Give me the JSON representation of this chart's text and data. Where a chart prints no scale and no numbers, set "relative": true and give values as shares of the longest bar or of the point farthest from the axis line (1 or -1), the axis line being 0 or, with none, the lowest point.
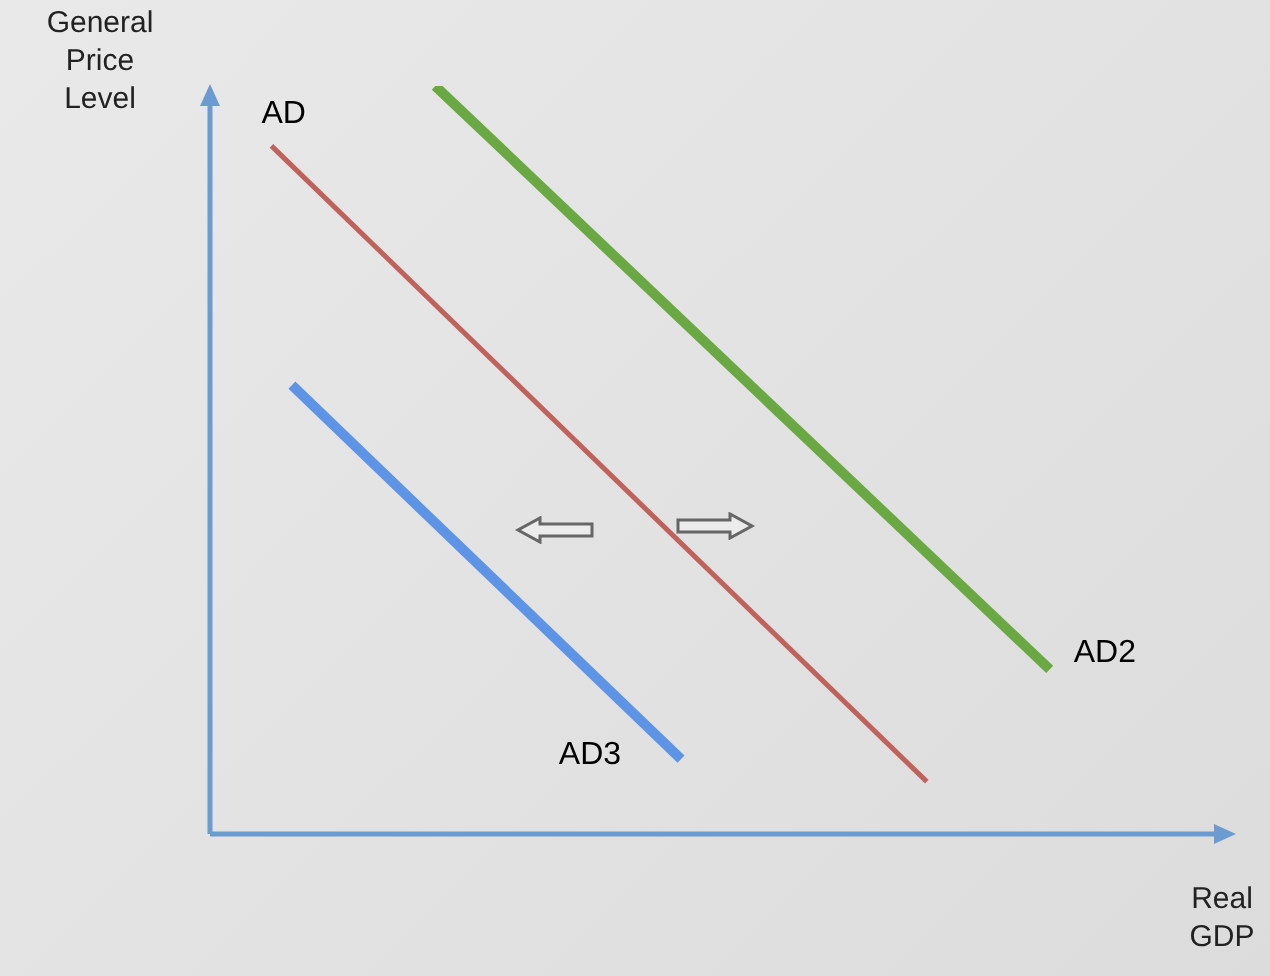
{
  "chart_data": {
    "type": "line",
    "relative": true,
    "xlabel": "Real GDP",
    "ylabel": "General Price Level",
    "legend": false,
    "marker": "none",
    "line_style": "solid",
    "categories": [
      null,
      null,
      null,
      null,
      null,
      null,
      null,
      null,
      null,
      null,
      null,
      null,
      null,
      null,
      null,
      null,
      null,
      null,
      null,
      null,
      null,
      null,
      null,
      null,
      null,
      null,
      null,
      null,
      null,
      null,
      null,
      null,
      null,
      null,
      null,
      null,
      null,
      null,
      null,
      null,
      null,
      null,
      null,
      null,
      null,
      null,
      null,
      null,
      null,
      null,
      null
    ],
    "series": [
      {
        "name": "AD",
        "color": "#c0625c",
        "values": [
          null,
          null,
          null,
          0.92,
          null,
          null,
          null,
          null,
          null,
          null,
          null,
          null,
          null,
          null,
          null,
          null,
          null,
          null,
          null,
          null,
          null,
          null,
          null,
          null,
          null,
          null,
          null,
          null,
          null,
          null,
          null,
          null,
          null,
          null,
          null,
          0.07,
          null,
          null,
          null,
          null,
          null,
          null,
          null,
          null,
          null,
          null,
          null,
          null,
          null,
          null,
          null
        ]
      },
      {
        "name": "AD2",
        "color": "#6aa843",
        "values": [
          null,
          null,
          null,
          null,
          null,
          null,
          null,
          null,
          null,
          null,
          null,
          1,
          null,
          null,
          null,
          null,
          null,
          null,
          null,
          null,
          null,
          null,
          null,
          null,
          null,
          null,
          null,
          null,
          null,
          null,
          null,
          null,
          null,
          null,
          null,
          null,
          null,
          null,
          null,
          null,
          null,
          0.22,
          null,
          null,
          null,
          null,
          null,
          null,
          null,
          null,
          null
        ]
      },
      {
        "name": "AD3",
        "color": "#5d94e6",
        "values": [
          null,
          null,
          null,
          null,
          0.6,
          null,
          null,
          null,
          null,
          null,
          null,
          null,
          null,
          null,
          null,
          null,
          null,
          null,
          null,
          null,
          null,
          null,
          null,
          0.1,
          null,
          null,
          null,
          null,
          null,
          null,
          null,
          null,
          null,
          null,
          null,
          null,
          null,
          null,
          null,
          null,
          null,
          null,
          null,
          null,
          null,
          null,
          null,
          null,
          null,
          null,
          null
        ]
      }
    ]
  }
}
